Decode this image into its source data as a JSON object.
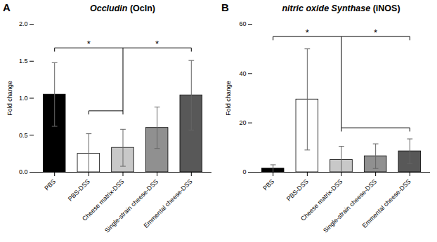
{
  "chart_data": [
    {
      "type": "bar",
      "panel_label": "A",
      "title": "Occludin (Ocln)",
      "ylabel": "Fold change",
      "categories": [
        "PBS",
        "PBS-DSS",
        "Cheese matrix-DSS",
        "Single-strain cheese-DSS",
        "Emmental cheese-DSS"
      ],
      "values": [
        1.05,
        0.25,
        0.33,
        0.6,
        1.04
      ],
      "errors": [
        0.43,
        0.27,
        0.25,
        0.28,
        0.47
      ],
      "colors": [
        "#000000",
        "#ffffff",
        "#c8c8c8",
        "#909090",
        "#585858"
      ],
      "ylim": [
        0,
        2.0
      ],
      "yticks": [
        {
          "value": 0.0,
          "label": "0.0"
        },
        0.5,
        {
          "value": 1.0,
          "label": "1.0"
        },
        1.5,
        {
          "value": 2.0,
          "label": "2.0"
        }
      ],
      "grid": false,
      "annotations": [
        {
          "type": "bracket",
          "from": "PBS",
          "to": "Emmental cheese-DSS",
          "y": 1.68,
          "split_at": "Cheese matrix-DSS",
          "drop_to": 0.83,
          "labels": [
            "*",
            "*"
          ]
        },
        {
          "type": "bracket",
          "from": "PBS-DSS",
          "to": "Cheese matrix-DSS",
          "y": 0.83
        }
      ]
    },
    {
      "type": "bar",
      "panel_label": "B",
      "title": "nitric oxide Synthase (iNOS)",
      "ylabel": "Fold change",
      "categories": [
        "PBS",
        "PBS-DSS",
        "Cheese matrix-DSS",
        "Single-strain cheese-DSS",
        "Emmental cheese-DSS"
      ],
      "values": [
        1.5,
        29.5,
        5.0,
        6.5,
        8.5
      ],
      "errors": [
        1.5,
        20.5,
        5.5,
        5.0,
        5.0
      ],
      "colors": [
        "#000000",
        "#ffffff",
        "#c8c8c8",
        "#909090",
        "#585858"
      ],
      "ylim": [
        0,
        60
      ],
      "yticks": [
        0,
        20,
        40,
        60
      ],
      "grid": false,
      "annotations": [
        {
          "type": "bracket",
          "from": "PBS",
          "to": "Emmental cheese-DSS",
          "y": 55,
          "split_at": "Cheese matrix-DSS",
          "drop_to": 18,
          "labels": [
            "*",
            "*"
          ]
        },
        {
          "type": "bracket",
          "from": "Cheese matrix-DSS",
          "to": "Emmental cheese-DSS",
          "y": 18
        }
      ]
    }
  ]
}
